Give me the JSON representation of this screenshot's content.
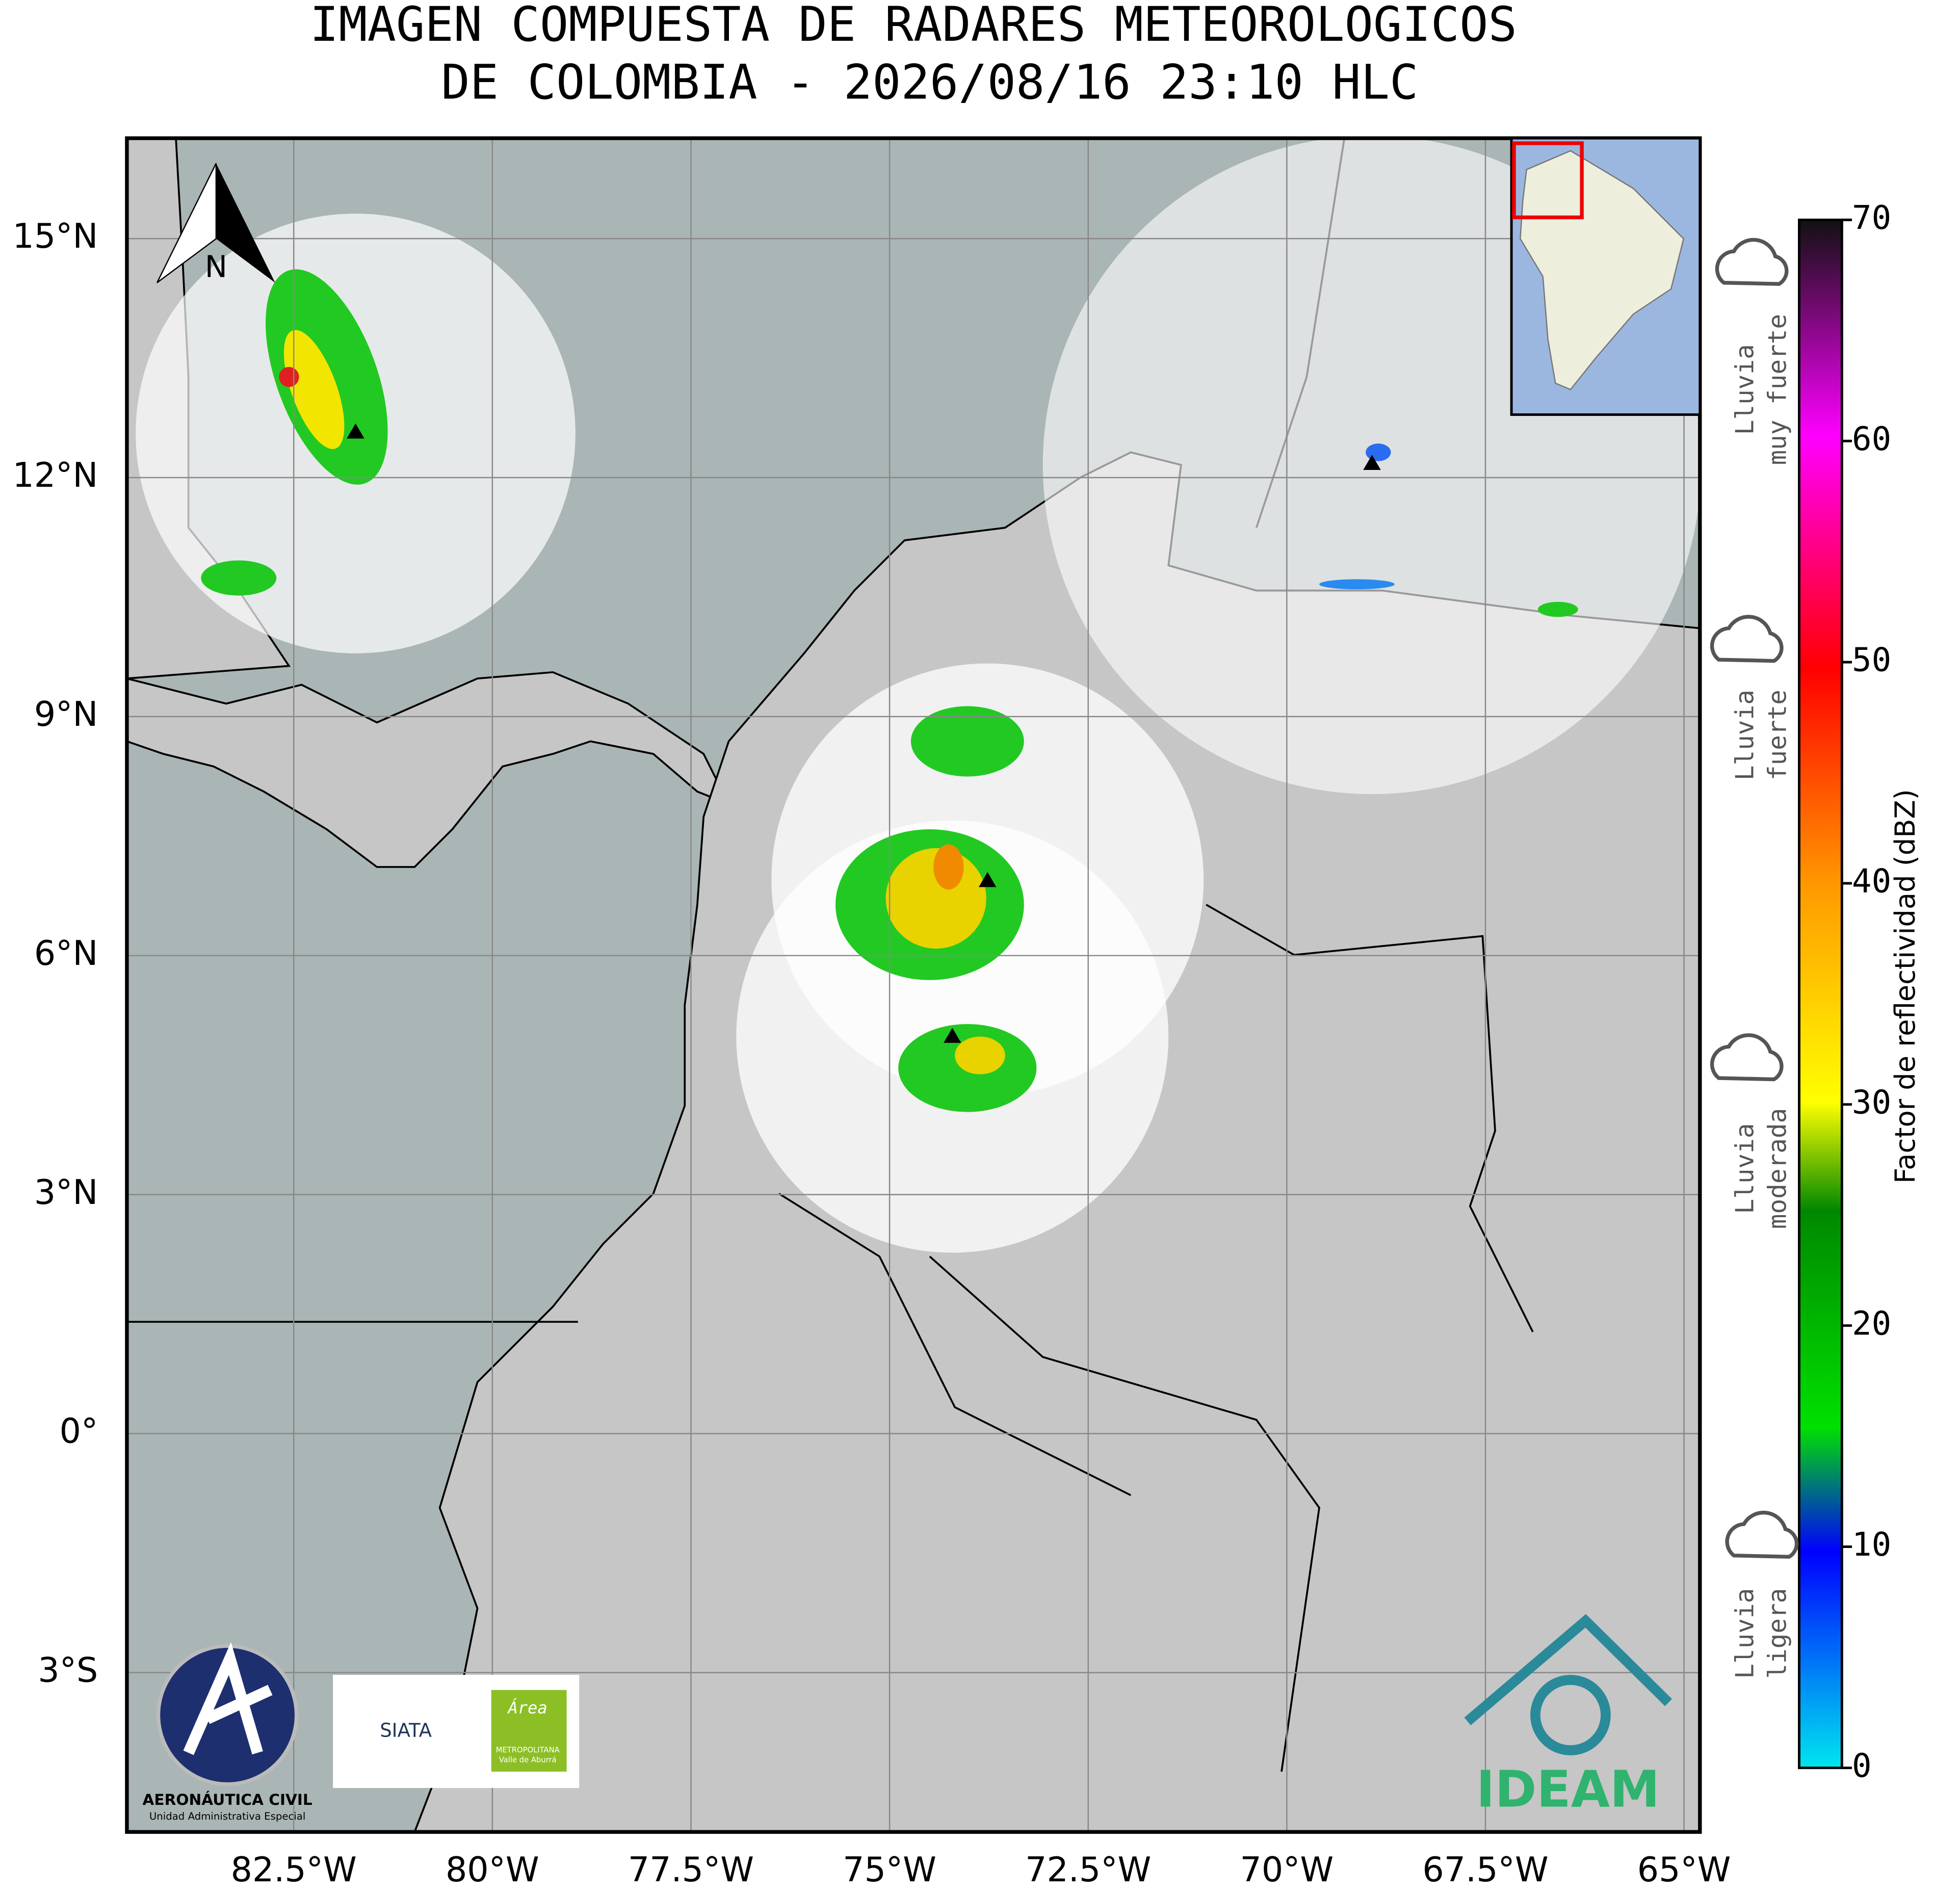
{
  "title": [
    "IMAGEN COMPUESTA DE RADARES METEOROLOGICOS",
    "DE COLOMBIA - 2026/08/16 23:10 HLC"
  ],
  "map": {
    "lonlim": [
      -84.6,
      -64.8
    ],
    "latlim": [
      -5.0,
      16.26
    ],
    "lonticks": [
      {
        "value": -82.5,
        "label": "82.5°W"
      },
      {
        "value": -80,
        "label": "80°W"
      },
      {
        "value": -77.5,
        "label": "77.5°W"
      },
      {
        "value": -75,
        "label": "75°W"
      },
      {
        "value": -72.5,
        "label": "72.5°W"
      },
      {
        "value": -70,
        "label": "70°W"
      },
      {
        "value": -67.5,
        "label": "67.5°W"
      },
      {
        "value": -65,
        "label": "65°W"
      }
    ],
    "latticks": [
      {
        "value": 15,
        "label": "15°N"
      },
      {
        "value": 12,
        "label": "12°N"
      },
      {
        "value": 9,
        "label": "9°N"
      },
      {
        "value": 6,
        "label": "6°N"
      },
      {
        "value": 3,
        "label": "3°N"
      },
      {
        "value": 0,
        "label": "0°"
      },
      {
        "value": -3,
        "label": "3°S"
      }
    ],
    "north": "N"
  },
  "colorbar": {
    "label": "Factor de reflectividad (dBZ)",
    "lim": [
      0,
      70
    ],
    "ticks": [
      0,
      10,
      20,
      30,
      40,
      50,
      60,
      70
    ]
  },
  "rain_levels": [
    {
      "lines": [
        "Lluvia",
        "muy fuerte"
      ]
    },
    {
      "lines": [
        "Lluvia",
        "fuerte"
      ]
    },
    {
      "lines": [
        "Lluvia",
        "moderada"
      ]
    },
    {
      "lines": [
        "Lluvia",
        "ligera"
      ]
    }
  ],
  "logos": {
    "aerocivil": [
      "AERONÁUTICA CIVIL",
      "Unidad Administrativa Especial"
    ],
    "siata": "SIATA",
    "area": [
      "Área",
      "METROPOLITANA",
      "Valle de Aburrá"
    ],
    "ideam": "IDEAM"
  }
}
